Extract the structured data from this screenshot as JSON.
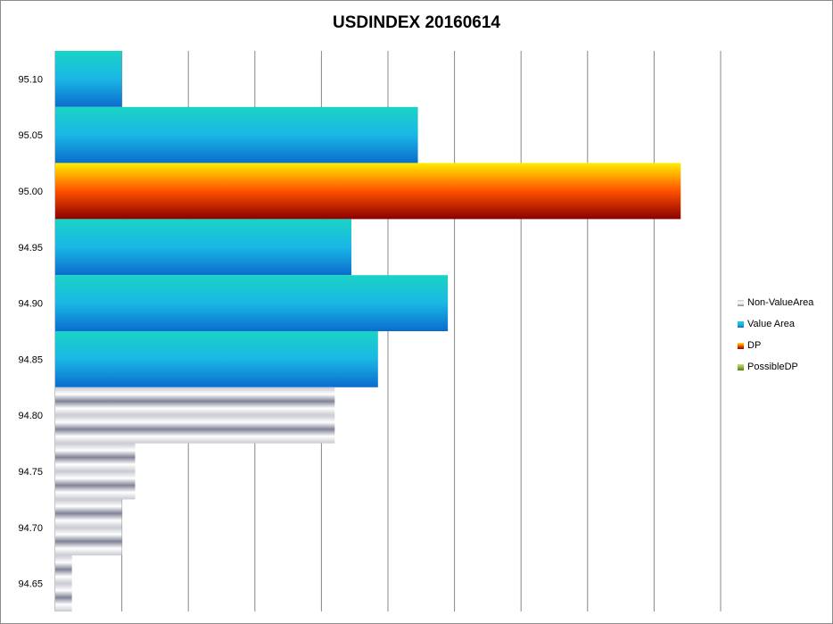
{
  "chart_data": {
    "type": "bar",
    "orientation": "horizontal",
    "title": "USDINDEX 20160614",
    "xlabel": "",
    "ylabel": "",
    "xlim": [
      0,
      1000
    ],
    "grid": true,
    "legend_position": "right",
    "categories": [
      "95.10",
      "95.05",
      "95.00",
      "94.95",
      "94.90",
      "94.85",
      "94.80",
      "94.75",
      "94.70",
      "94.65"
    ],
    "series": [
      {
        "name": "Non-ValueArea",
        "gradient": [
          "#c8cad2",
          "#ffffff",
          "#7f8396"
        ],
        "values": [
          0,
          0,
          0,
          0,
          0,
          0,
          420,
          120,
          100,
          25
        ]
      },
      {
        "name": "Value Area",
        "gradient": [
          "#1ad3c4",
          "#1ab7e6",
          "#0a6ccc"
        ],
        "values": [
          100,
          545,
          0,
          445,
          590,
          485,
          0,
          0,
          0,
          0
        ]
      },
      {
        "name": "DP",
        "gradient": [
          "#ffee00",
          "#ff5000",
          "#8b0000"
        ],
        "values": [
          0,
          0,
          940,
          0,
          0,
          0,
          0,
          0,
          0,
          0
        ]
      },
      {
        "name": "PossibleDP",
        "gradient": [
          "#c6e27a",
          "#8ab63c",
          "#557a1a"
        ],
        "values": [
          0,
          0,
          0,
          0,
          0,
          0,
          0,
          0,
          0,
          0
        ]
      }
    ]
  }
}
